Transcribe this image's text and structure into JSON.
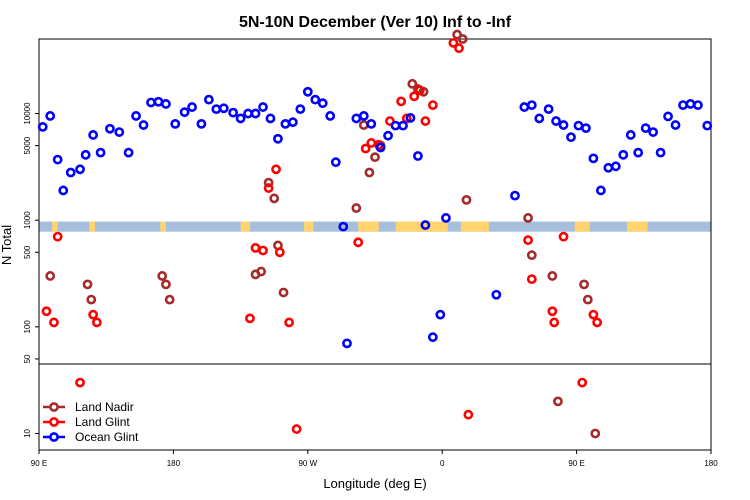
{
  "chart_data": {
    "type": "scatter",
    "title": "5N-10N December (Ver 10)   Inf to -Inf",
    "xlabel": "Longitude (deg E)",
    "ylabel": "N Total",
    "xlim": [
      -180,
      180
    ],
    "yscale": "log",
    "ylim": [
      7,
      50000
    ],
    "x_ticks": [
      {
        "value": -180,
        "label": "90 E"
      },
      {
        "value": -108,
        "label": "180"
      },
      {
        "value": -36,
        "label": "90 W"
      },
      {
        "value": 36,
        "label": "0"
      },
      {
        "value": 108,
        "label": "90 E"
      },
      {
        "value": 180,
        "label": "180"
      }
    ],
    "y_ticks": [
      {
        "value": 10,
        "label": "10"
      },
      {
        "value": 50,
        "label": "50"
      },
      {
        "value": 100,
        "label": "100"
      },
      {
        "value": 500,
        "label": "500"
      },
      {
        "value": 1000,
        "label": "1000"
      },
      {
        "value": 5000,
        "label": "5000"
      },
      {
        "value": 10000,
        "label": "10000"
      }
    ],
    "divider_value": 50,
    "land_strip": {
      "y_range": [
        780,
        970
      ],
      "band_color": "#a5bfdc",
      "land_color": "#ffd46e",
      "land_spans_x": [
        [
          -173,
          -170
        ],
        [
          -153,
          -150
        ],
        [
          -115,
          -112
        ],
        [
          -72,
          -67
        ],
        [
          -38,
          -33
        ],
        [
          -9,
          2
        ],
        [
          11,
          39
        ],
        [
          46,
          61
        ],
        [
          107,
          115
        ],
        [
          135,
          146
        ]
      ]
    },
    "legend": {
      "position": "bottom-left"
    },
    "series": [
      {
        "name": "Land Nadir",
        "color": "#a52a2a",
        "points": [
          [
            -174,
            300
          ],
          [
            -154,
            250
          ],
          [
            -152,
            180
          ],
          [
            -114,
            300
          ],
          [
            -112,
            250
          ],
          [
            -110,
            180
          ],
          [
            -64,
            310
          ],
          [
            -61,
            330
          ],
          [
            -57,
            2250
          ],
          [
            -54,
            1600
          ],
          [
            -52,
            580
          ],
          [
            -49,
            210
          ],
          [
            -10,
            1300
          ],
          [
            -6,
            7800
          ],
          [
            -3,
            2800
          ],
          [
            0,
            3900
          ],
          [
            3,
            5000
          ],
          [
            20,
            19000
          ],
          [
            23,
            17000
          ],
          [
            26,
            16000
          ],
          [
            44,
            55000
          ],
          [
            47,
            50000
          ],
          [
            49,
            1550
          ],
          [
            82,
            1050
          ],
          [
            84,
            470
          ],
          [
            95,
            300
          ],
          [
            98,
            20
          ],
          [
            112,
            250
          ],
          [
            114,
            180
          ],
          [
            118,
            10
          ]
        ]
      },
      {
        "name": "Land Glint",
        "color": "#ff0000",
        "points": [
          [
            -176,
            140
          ],
          [
            -172,
            110
          ],
          [
            -170,
            700
          ],
          [
            -158,
            30
          ],
          [
            -151,
            130
          ],
          [
            -149,
            110
          ],
          [
            -67,
            120
          ],
          [
            -64,
            550
          ],
          [
            -60,
            520
          ],
          [
            -57,
            2000
          ],
          [
            -53,
            3000
          ],
          [
            -51,
            500
          ],
          [
            -46,
            110
          ],
          [
            -42,
            11
          ],
          [
            -9,
            620
          ],
          [
            -5,
            4700
          ],
          [
            -2,
            5300
          ],
          [
            2,
            5100
          ],
          [
            8,
            8500
          ],
          [
            14,
            13000
          ],
          [
            17,
            9000
          ],
          [
            21,
            14500
          ],
          [
            24,
            16500
          ],
          [
            27,
            8500
          ],
          [
            31,
            12000
          ],
          [
            42,
            46000
          ],
          [
            45,
            41000
          ],
          [
            50,
            15
          ],
          [
            82,
            650
          ],
          [
            84,
            280
          ],
          [
            95,
            140
          ],
          [
            96,
            110
          ],
          [
            101,
            700
          ],
          [
            111,
            30
          ],
          [
            117,
            130
          ],
          [
            119,
            110
          ]
        ]
      },
      {
        "name": "Ocean Glint",
        "color": "#0000ff",
        "points": [
          [
            -178,
            7500
          ],
          [
            -174,
            9500
          ],
          [
            -170,
            3700
          ],
          [
            -167,
            1900
          ],
          [
            -163,
            2800
          ],
          [
            -158,
            3000
          ],
          [
            -155,
            4100
          ],
          [
            -151,
            6300
          ],
          [
            -147,
            4300
          ],
          [
            -142,
            7200
          ],
          [
            -137,
            6700
          ],
          [
            -132,
            4300
          ],
          [
            -128,
            9500
          ],
          [
            -124,
            7800
          ],
          [
            -120,
            12700
          ],
          [
            -116,
            12900
          ],
          [
            -112,
            12300
          ],
          [
            -107,
            8000
          ],
          [
            -102,
            10300
          ],
          [
            -98,
            11500
          ],
          [
            -93,
            8000
          ],
          [
            -89,
            13500
          ],
          [
            -85,
            11000
          ],
          [
            -81,
            11200
          ],
          [
            -76,
            10200
          ],
          [
            -72,
            9000
          ],
          [
            -68,
            10000
          ],
          [
            -64,
            10000
          ],
          [
            -60,
            11500
          ],
          [
            -56,
            9000
          ],
          [
            -52,
            5800
          ],
          [
            -48,
            8000
          ],
          [
            -44,
            8300
          ],
          [
            -40,
            11000
          ],
          [
            -36,
            16000
          ],
          [
            -32,
            13500
          ],
          [
            -28,
            12500
          ],
          [
            -24,
            9500
          ],
          [
            -21,
            3500
          ],
          [
            -17,
            870
          ],
          [
            -15,
            70
          ],
          [
            -10,
            9000
          ],
          [
            -6,
            9500
          ],
          [
            -2,
            8000
          ],
          [
            3,
            4800
          ],
          [
            7,
            6200
          ],
          [
            11,
            7700
          ],
          [
            15,
            7700
          ],
          [
            19,
            9100
          ],
          [
            23,
            4000
          ],
          [
            27,
            900
          ],
          [
            31,
            80
          ],
          [
            35,
            130
          ],
          [
            38,
            1050
          ],
          [
            65,
            200
          ],
          [
            75,
            1700
          ],
          [
            80,
            11500
          ],
          [
            84,
            12000
          ],
          [
            88,
            9000
          ],
          [
            93,
            11000
          ],
          [
            97,
            8500
          ],
          [
            101,
            7800
          ],
          [
            105,
            6000
          ],
          [
            109,
            7700
          ],
          [
            113,
            7300
          ],
          [
            117,
            3800
          ],
          [
            121,
            1900
          ],
          [
            125,
            3100
          ],
          [
            129,
            3200
          ],
          [
            133,
            4100
          ],
          [
            137,
            6300
          ],
          [
            141,
            4300
          ],
          [
            145,
            7300
          ],
          [
            149,
            6700
          ],
          [
            153,
            4300
          ],
          [
            157,
            9400
          ],
          [
            161,
            7800
          ],
          [
            165,
            12000
          ],
          [
            169,
            12300
          ],
          [
            173,
            12000
          ],
          [
            178,
            7700
          ]
        ]
      }
    ]
  }
}
